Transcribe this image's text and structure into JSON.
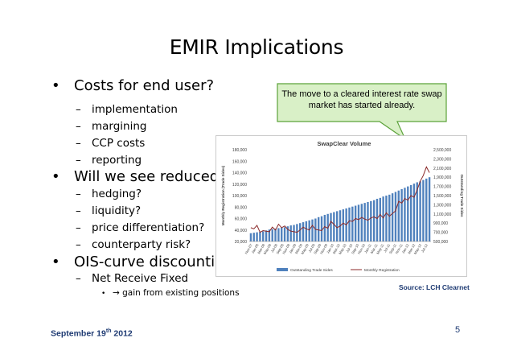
{
  "slide": {
    "title": "EMIR Implications",
    "bullets": [
      {
        "text": "Costs for end user?",
        "sub": [
          "implementation",
          "margining",
          "CCP costs",
          "reporting"
        ]
      },
      {
        "text": "Will we see reduced…",
        "sub": [
          "hedging?",
          "liquidity?",
          "price differentiation?",
          "counterparty risk?"
        ]
      },
      {
        "text": "OIS-curve discounting",
        "sub": [
          "Net Receive Fixed"
        ],
        "subsub": "→ gain from existing positions"
      }
    ],
    "callout": "The move to a cleared interest rate swap market has started already.",
    "source": "Source: LCH Clearnet",
    "footer": {
      "date_main": "September 19",
      "date_sup": "th",
      "date_year": " 2012",
      "page": "5"
    },
    "colors": {
      "accent": "#1f3b73",
      "callout_fill": "#d9f0c7",
      "callout_border": "#5ca23a",
      "bars": "#4f81bd",
      "line": "#8b2a2a"
    }
  },
  "chart_data": {
    "type": "bar",
    "title": "SwapClear Volume",
    "ylabel": "Monthly Registration (Trade Sides)",
    "y2label": "Outstanding Trade Sides",
    "ylim": [
      20000,
      180000
    ],
    "y2lim": [
      500000,
      2500000
    ],
    "yticks": [
      "180,000",
      "160,000",
      "140,000",
      "120,000",
      "100,000",
      "80,000",
      "60,000",
      "40,000",
      "20,000"
    ],
    "y2ticks": [
      "2,500,000",
      "2,300,000",
      "2,100,000",
      "1,900,000",
      "1,700,000",
      "1,500,000",
      "1,300,000",
      "1,100,000",
      "900,000",
      "700,000",
      "500,000"
    ],
    "xticks": [
      "Nov-07",
      "Jan-08",
      "Mar-08",
      "May-08",
      "Jul-08",
      "Sep-08",
      "Nov-08",
      "Jan-09",
      "Mar-09",
      "May-09",
      "Jul-09",
      "Sep-09",
      "Nov-09",
      "Jan-10",
      "Mar-10",
      "May-10",
      "Jul-10",
      "Sep-10",
      "Nov-10",
      "Jan-11",
      "Mar-11",
      "May-11",
      "Jul-11",
      "Sep-11",
      "Nov-11",
      "Jan-12",
      "Mar-12",
      "May-12",
      "Jul-12"
    ],
    "legend": [
      "Outstanding Trade Sides",
      "Monthly Registration"
    ],
    "series": [
      {
        "name": "Outstanding Trade Sides",
        "axis": "right",
        "values": [
          680000,
          690000,
          700000,
          710000,
          720000,
          740000,
          760000,
          770000,
          780000,
          790000,
          800000,
          810000,
          830000,
          850000,
          860000,
          880000,
          900000,
          920000,
          940000,
          960000,
          980000,
          1000000,
          1030000,
          1050000,
          1080000,
          1100000,
          1120000,
          1140000,
          1160000,
          1180000,
          1200000,
          1220000,
          1240000,
          1260000,
          1280000,
          1300000,
          1320000,
          1340000,
          1360000,
          1380000,
          1400000,
          1430000,
          1450000,
          1480000,
          1500000,
          1520000,
          1550000,
          1580000,
          1610000,
          1640000,
          1670000,
          1700000,
          1730000,
          1760000,
          1790000,
          1810000,
          1840000,
          1870000,
          1900000
        ]
      },
      {
        "name": "Monthly Registration",
        "axis": "left",
        "values": [
          44000,
          42000,
          48000,
          36000,
          39000,
          38000,
          37000,
          45000,
          40000,
          50000,
          44000,
          47000,
          41000,
          38000,
          37000,
          36000,
          40000,
          45000,
          42000,
          40000,
          48000,
          41000,
          40000,
          39000,
          46000,
          43000,
          55000,
          50000,
          44000,
          47000,
          52000,
          49000,
          56000,
          55000,
          60000,
          58000,
          62000,
          59000,
          57000,
          61000,
          63000,
          60000,
          67000,
          61000,
          70000,
          64000,
          69000,
          73000,
          90000,
          87000,
          95000,
          92000,
          100000,
          97000,
          110000,
          125000,
          135000,
          150000,
          140000
        ]
      }
    ]
  }
}
